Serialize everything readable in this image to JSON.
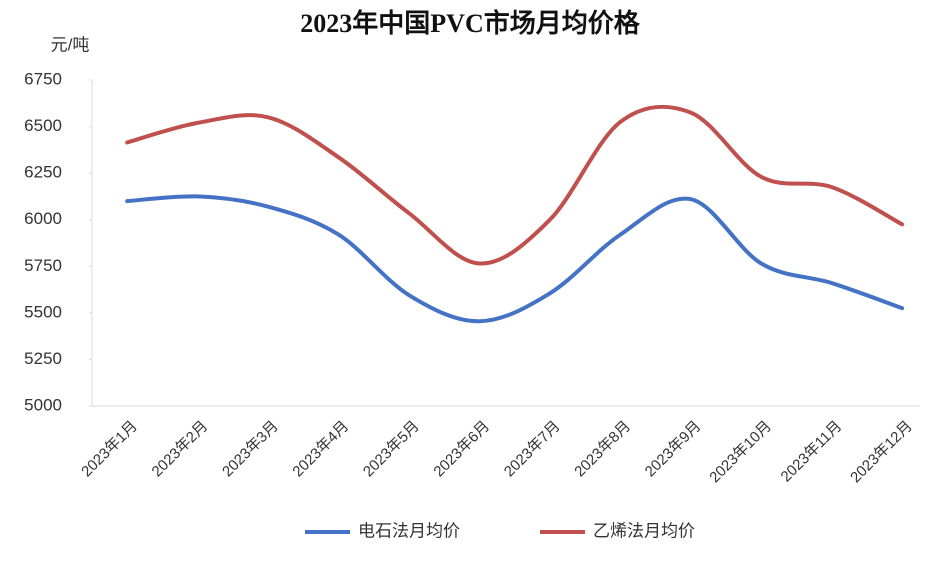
{
  "chart_data": {
    "type": "line",
    "title": "2023年中国PVC市场月均价格",
    "y_label": "元/吨",
    "categories": [
      "2023年1月",
      "2023年2月",
      "2023年3月",
      "2023年4月",
      "2023年5月",
      "2023年6月",
      "2023年7月",
      "2023年8月",
      "2023年9月",
      "2023年10月",
      "2023年11月",
      "2023年12月"
    ],
    "series": [
      {
        "name": "电石法月均价",
        "color": "#4472c4",
        "values": [
          6100,
          6125,
          6070,
          5920,
          5595,
          5455,
          5605,
          5920,
          6110,
          5765,
          5660,
          5525
        ]
      },
      {
        "name": "乙烯法月均价",
        "color": "#c0504d",
        "values": [
          6415,
          6520,
          6550,
          6335,
          6035,
          5765,
          6000,
          6525,
          6575,
          6230,
          6175,
          5975
        ]
      }
    ],
    "ylim": [
      5000,
      6750
    ],
    "yticks": [
      5000,
      5250,
      5500,
      5750,
      6000,
      6250,
      6500,
      6750
    ],
    "grid": false,
    "legend": "bottom"
  }
}
